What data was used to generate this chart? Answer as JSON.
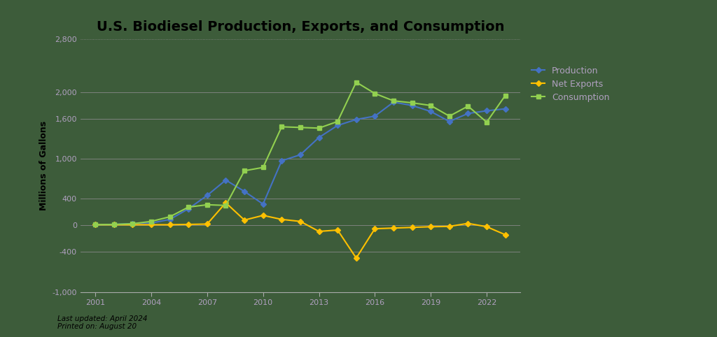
{
  "title": "U.S. Biodiesel Production, Exports, and Consumption",
  "ylabel": "Millions of Gallons",
  "background_color": "#3d5c3a",
  "plot_bg_color": "#3d5c3a",
  "years": [
    2001,
    2002,
    2003,
    2004,
    2005,
    2006,
    2007,
    2008,
    2009,
    2010,
    2011,
    2012,
    2013,
    2014,
    2015,
    2016,
    2017,
    2018,
    2019,
    2020,
    2021,
    2022,
    2023
  ],
  "production": [
    10,
    15,
    25,
    35,
    90,
    250,
    450,
    680,
    510,
    320,
    970,
    1060,
    1320,
    1500,
    1590,
    1640,
    1850,
    1800,
    1710,
    1560,
    1680,
    1720,
    1750
  ],
  "net_exports": [
    10,
    10,
    10,
    10,
    10,
    15,
    20,
    340,
    80,
    150,
    90,
    60,
    -90,
    -70,
    -490,
    -50,
    -40,
    -30,
    -20,
    -15,
    30,
    -20,
    -140
  ],
  "consumption": [
    10,
    15,
    25,
    60,
    130,
    275,
    310,
    300,
    820,
    870,
    1480,
    1470,
    1460,
    1560,
    2150,
    1980,
    1870,
    1840,
    1800,
    1640,
    1790,
    1550,
    1950
  ],
  "ylim": [
    -1000,
    2800
  ],
  "yticks": [
    2800,
    2000,
    1600,
    1000,
    400,
    0,
    -400,
    -1000
  ],
  "ytick_labels": [
    "2,800",
    "2,000",
    "1,600",
    "1,000",
    "400",
    "0",
    "-400",
    "-1,000"
  ],
  "top_gridline_style": "dotted",
  "grid_color": "#888888",
  "production_color": "#4472c4",
  "net_exports_color": "#ffc000",
  "consumption_color": "#92d050",
  "tick_label_color": "#b0a0c0",
  "annotation_text": "Last updated: April 2024\nPrinted on: August 20",
  "title_fontsize": 14,
  "axis_label_fontsize": 9,
  "tick_fontsize": 8,
  "legend_fontsize": 9
}
